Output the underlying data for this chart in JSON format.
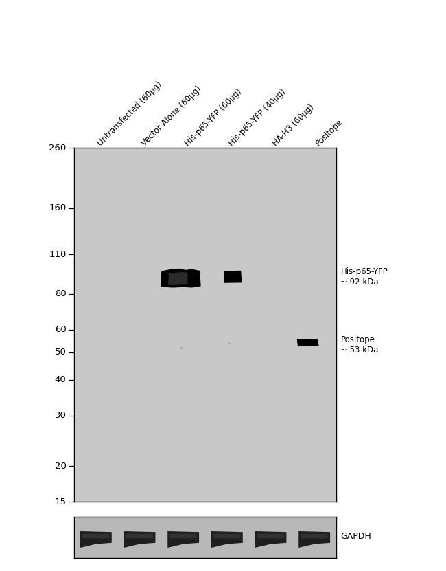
{
  "figure_width": 6.5,
  "figure_height": 8.31,
  "bg_color": "#ffffff",
  "panel_bg": "#c8c8c8",
  "panel_bg_gapdh": "#b8b8b8",
  "lane_labels": [
    "Untransfected (60μg)",
    "Vector Alone (60μg)",
    "His-p65-YFP (60μg)",
    "His-p65-YFP (40μg)",
    "HA-H3 (60μg)",
    "Positope"
  ],
  "mw_markers": [
    260,
    160,
    110,
    80,
    60,
    50,
    40,
    30,
    20,
    15
  ],
  "right_labels": [
    {
      "text": "His-p65-YFP\n~ 92 kDa",
      "kda": 92
    },
    {
      "text": "Positope\n~ 53 kDa",
      "kda": 53
    }
  ],
  "gapdh_label": "GAPDH",
  "band_color": "#000000",
  "panel_border_color": "#000000",
  "tick_color": "#000000",
  "label_color": "#000000",
  "font_size_ticks": 9.5,
  "font_size_labels": 8.5,
  "font_size_right": 8.5
}
